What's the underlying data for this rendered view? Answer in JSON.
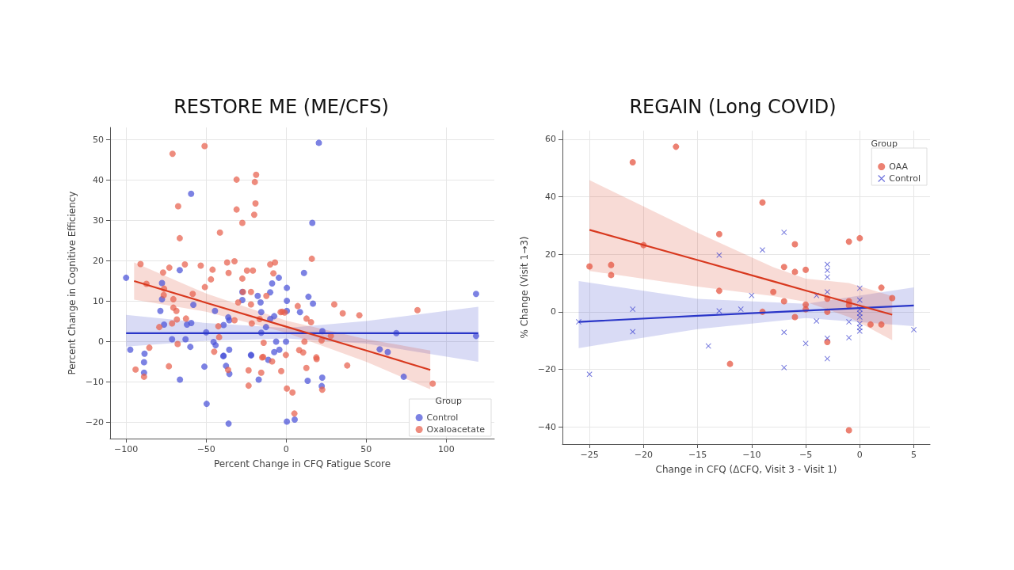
{
  "chart_data": [
    {
      "type": "scatter",
      "title": "RESTORE ME (ME/CFS)",
      "xlabel": "Percent Change in CFQ Fatigue Score",
      "ylabel": "Percent Change in Cognitive Efficiency",
      "legend_title": "Group",
      "legend": "bottom right",
      "grid": true,
      "marker": "circle",
      "xlim": [
        -110,
        130
      ],
      "xticks": [
        -100,
        -50,
        0,
        50,
        100
      ],
      "ylim": [
        -24,
        53
      ],
      "yticks": [
        -20,
        -10,
        0,
        10,
        20,
        30,
        40,
        50
      ],
      "series": [
        {
          "name": "Control",
          "color": "#4a52d8",
          "x": [
            -100,
            -97.4,
            -88.5,
            -59.4,
            -66.5,
            -77.6,
            -77.6,
            -78.6,
            -76.3,
            -71.3,
            -58,
            -62,
            -59.3,
            -62.9,
            -59.9,
            -50,
            -44.5,
            -39.1,
            -36.2,
            -35.6,
            -45.4,
            -44.1,
            -39.1,
            -35.6,
            -27.4,
            -27.4,
            -22,
            -17.8,
            -16,
            -15.6,
            -15.6,
            -12.6,
            -8.8,
            -10,
            -4.6,
            0.4,
            0.4,
            0.4,
            -7.5,
            -10,
            -6.3,
            -0.1,
            -7.5,
            -4.3,
            20.4,
            16.3,
            11.1,
            13.9,
            16.7,
            8.6,
            118.6,
            118.6,
            68.8,
            58.4,
            63.4,
            22.6,
            -88.8,
            -88.8,
            -66.4,
            -51.1,
            -49.7,
            -36,
            -39.3,
            -37.6,
            -35.5,
            -21.9,
            -17.2,
            -11.2,
            0.4,
            5.3,
            13.4,
            22.5,
            22.2,
            73.4
          ],
          "values": [
            15.8,
            -2,
            -3,
            36.6,
            17.7,
            14.5,
            10.5,
            7.6,
            4.2,
            0.6,
            9.1,
            4.2,
            4.6,
            0.6,
            -1.3,
            2.3,
            7.6,
            4.1,
            6,
            5.3,
            -0.1,
            -0.9,
            -3.5,
            -2,
            12.3,
            10.3,
            -3.3,
            11.3,
            9.7,
            7.3,
            2.2,
            3.6,
            14.4,
            12.2,
            15.8,
            13.3,
            10.1,
            7.6,
            6.3,
            5.6,
            0,
            0,
            -2.6,
            -2,
            49.2,
            29.4,
            17,
            11.1,
            9.4,
            7.3,
            11.8,
            1.4,
            2.1,
            -1.9,
            -2.6,
            2.6,
            -5.1,
            -7.7,
            -9.4,
            -6.2,
            -15.4,
            -20.3,
            -3.6,
            -6,
            -8,
            -3.4,
            -9.4,
            -4.5,
            -19.8,
            -19.3,
            -9.7,
            -8.9,
            -11,
            -8.7
          ]
        },
        {
          "name": "Oxaloacetate",
          "color": "#e8604c",
          "x": [
            -91,
            -71,
            -51,
            -67.5,
            -66.5,
            -41.4,
            -31,
            -31,
            -27.4,
            -19.6,
            -18.8,
            -19.2,
            -20,
            -63.3,
            -76.9,
            -73,
            -53.4,
            -46,
            -47,
            -50.8,
            -36.9,
            -32.3,
            -36,
            -27.4,
            -24.5,
            -20.8,
            -27,
            -22,
            -10,
            -7,
            -8,
            -87.3,
            -76.3,
            -76.5,
            -70.5,
            -70.5,
            -68.6,
            -58.4,
            -68.3,
            -62.6,
            -30,
            -22,
            -12.4,
            -2.5,
            -79.3,
            -71.3,
            -67.8,
            -42.4,
            -32.3,
            -21.5,
            -16.6,
            -85.5,
            -41.9,
            -45,
            -14.1,
            -14.4,
            -0.2,
            16,
            30,
            35.3,
            45.7,
            82,
            7.2,
            -3.5,
            -1,
            12.7,
            15.5,
            22.1,
            27.9,
            11.4,
            18.8,
            8.1,
            10.6,
            -94.1,
            -73.3,
            -88.8,
            -36.3,
            -23.5,
            -23.5,
            -15,
            -15.6,
            -8.8,
            -3.1,
            0.4,
            3.9,
            5.1,
            12.6,
            19,
            22.5,
            38.1,
            91.5
          ],
          "values": [
            19.2,
            46.5,
            48.4,
            33.5,
            25.6,
            27,
            40.1,
            32.7,
            29.4,
            39.5,
            41.3,
            34.2,
            31.4,
            19.1,
            17.1,
            18.3,
            18.8,
            17.8,
            15.4,
            13.5,
            19.6,
            19.9,
            17,
            15.6,
            17.6,
            17.6,
            12.3,
            12.3,
            19.1,
            19.6,
            16.9,
            14.3,
            13.1,
            11.5,
            10.5,
            8.4,
            7.6,
            11.8,
            5.5,
            5.7,
            9.7,
            9.2,
            11.3,
            7.4,
            3.6,
            4.5,
            -0.6,
            3.8,
            5.3,
            4.5,
            5.6,
            -1.5,
            1.1,
            -2.5,
            -0.3,
            -3.8,
            -3.3,
            20.5,
            9.2,
            7,
            6.5,
            7.8,
            8.8,
            7.3,
            7.2,
            5.7,
            4.8,
            0.3,
            1.4,
            0,
            -3.9,
            -2.1,
            -2.7,
            -6.9,
            -6.1,
            -8.7,
            -7,
            -7.1,
            -10.9,
            -3.9,
            -7.7,
            -4.9,
            -7.3,
            -11.6,
            -12.6,
            -17.8,
            -6.5,
            -4.3,
            -11.9,
            -5.9,
            -10.4
          ]
        },
        {
          "type": "line",
          "color": "#2a36c8",
          "marker": "none",
          "line_style": "solid",
          "x": [
            -100,
            -50,
            0,
            50,
            120
          ],
          "values": [
            2.1,
            2.1,
            2.1,
            2.1,
            2.1
          ],
          "lower": [
            -1.2,
            0.2,
            0.8,
            -0.5,
            -5
          ],
          "upper": [
            6.6,
            4.6,
            3.4,
            5.1,
            8.6
          ]
        },
        {
          "type": "line",
          "color": "#d8381e",
          "marker": "none",
          "line_style": "solid",
          "x": [
            -95,
            -50,
            0,
            50,
            90
          ],
          "values": [
            15,
            9.6,
            3.7,
            -2.2,
            -7
          ],
          "lower": [
            10.4,
            7.4,
            2.2,
            -5,
            -11.8
          ],
          "upper": [
            19.6,
            11.9,
            5.2,
            0.6,
            -2.2
          ]
        }
      ]
    },
    {
      "type": "scatter",
      "title": "REGAIN (Long COVID)",
      "xlabel": "Change in CFQ (ΔCFQ, Visit 3 - Visit 1)",
      "ylabel": "% Change (Visit 1→3)",
      "legend_title": "Group",
      "legend": "top right",
      "grid": true,
      "xlim": [
        -27.5,
        6.5
      ],
      "xticks": [
        -25,
        -20,
        -15,
        -10,
        -5,
        0,
        5
      ],
      "ylim": [
        -46,
        63
      ],
      "yticks": [
        -40,
        -20,
        0,
        20,
        40,
        60
      ],
      "series": [
        {
          "name": "OAA",
          "color": "#e4503c",
          "marker": "circle",
          "x": [
            -25,
            -23,
            -23,
            -21,
            -20,
            -17,
            -13,
            -13,
            -9,
            -8,
            -7,
            -7,
            -9,
            -6,
            -6,
            -6,
            -5,
            -5,
            -5,
            -3,
            -3,
            -3,
            -1,
            0,
            -1,
            -1,
            1,
            2,
            2,
            3,
            -1,
            -12
          ],
          "values": [
            15.8,
            16.3,
            12.8,
            52,
            23.2,
            57.4,
            27,
            7.3,
            38,
            6.9,
            15.6,
            3.7,
            0,
            23.5,
            13.9,
            -1.8,
            14.6,
            2.5,
            0.9,
            4.6,
            0,
            -10.5,
            24.4,
            25.6,
            3.7,
            2.3,
            -4.4,
            -4.4,
            8.4,
            4.8,
            -41.2,
            -18.1
          ]
        },
        {
          "name": "Control",
          "color": "#3a40d0",
          "marker": "cross",
          "x": [
            -26,
            -21,
            -21,
            -13,
            -13,
            -14,
            -7,
            -9,
            -10,
            -11,
            -7,
            -5,
            -4,
            -4,
            -3,
            -3,
            -3,
            -3,
            -3,
            -1,
            -1,
            0,
            0,
            0,
            0,
            0,
            0,
            0,
            0,
            5,
            -25,
            -7,
            -3
          ],
          "values": [
            -3.5,
            0.9,
            -6.9,
            19.7,
            0.3,
            -11.9,
            27.6,
            21.5,
            5.7,
            0.9,
            -7.1,
            -11,
            -3.2,
            5.7,
            16.5,
            14.4,
            12.1,
            6.9,
            -9.2,
            -3.5,
            -9,
            8.2,
            4.1,
            0.9,
            -0.5,
            -1.8,
            -4.1,
            -5.5,
            -6.7,
            -6.2,
            -21.7,
            -19.4,
            -16.3
          ]
        },
        {
          "type": "line",
          "color": "#2a36c8",
          "marker": "none",
          "line_style": "solid",
          "x": [
            -26,
            -15,
            -5,
            5
          ],
          "values": [
            -3.5,
            -1.4,
            0.4,
            2.2
          ],
          "lower": [
            -12.6,
            -6,
            -2.2,
            -5
          ],
          "upper": [
            10.7,
            4.5,
            2.8,
            8.5
          ]
        },
        {
          "type": "line",
          "color": "#d8381e",
          "marker": "none",
          "line_style": "solid",
          "x": [
            -25,
            -15,
            -8,
            -5,
            -1,
            3
          ],
          "values": [
            28.5,
            18,
            10.6,
            7.4,
            3.2,
            -1
          ],
          "lower": [
            14.2,
            8.8,
            5.5,
            3.5,
            -1.8,
            -9.9
          ],
          "upper": [
            45.8,
            27.5,
            15.5,
            11.5,
            10,
            5.5
          ]
        }
      ]
    }
  ]
}
